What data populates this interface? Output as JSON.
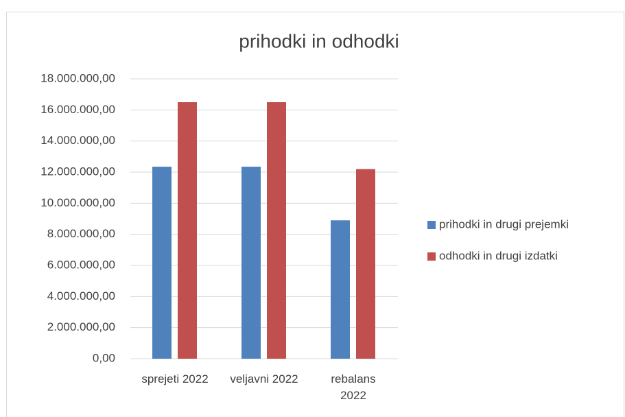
{
  "chart_data": {
    "type": "bar",
    "title": "prihodki in odhodki",
    "categories": [
      "sprejeti 2022",
      "veljavni 2022",
      "rebalans 2022"
    ],
    "series": [
      {
        "name": "prihodki in drugi prejemki",
        "color": "#4f81bd",
        "values": [
          12350000,
          12350000,
          8900000
        ]
      },
      {
        "name": "odhodki in drugi izdatki",
        "color": "#c0504d",
        "values": [
          16500000,
          16500000,
          12200000
        ]
      }
    ],
    "ylim": [
      0,
      18000000
    ],
    "yticks": [
      {
        "value": 0,
        "label": "0,00"
      },
      {
        "value": 2000000,
        "label": "2.000.000,00"
      },
      {
        "value": 4000000,
        "label": "4.000.000,00"
      },
      {
        "value": 6000000,
        "label": "6.000.000,00"
      },
      {
        "value": 8000000,
        "label": "8.000.000,00"
      },
      {
        "value": 10000000,
        "label": "10.000.000,00"
      },
      {
        "value": 12000000,
        "label": "12.000.000,00"
      },
      {
        "value": 14000000,
        "label": "14.000.000,00"
      },
      {
        "value": 16000000,
        "label": "16.000.000,00"
      },
      {
        "value": 18000000,
        "label": "18.000.000,00"
      }
    ],
    "grid": true,
    "legend": "right"
  }
}
